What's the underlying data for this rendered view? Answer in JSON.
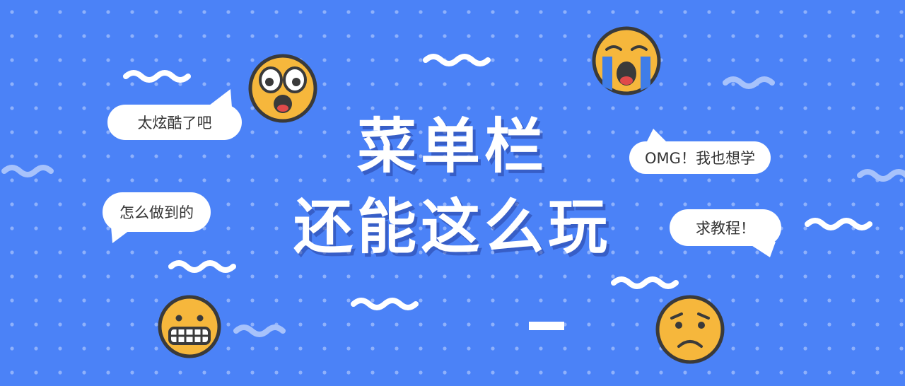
{
  "title": {
    "line1": "菜单栏",
    "line2": "还能这么玩"
  },
  "bubbles": {
    "cool": "太炫酷了吧",
    "how": "怎么做到的",
    "omg": "OMG！我也想学",
    "tutorial": "求教程！"
  },
  "emojis": [
    "surprised-face",
    "crying-face",
    "grimacing-face",
    "worried-face"
  ],
  "colors": {
    "background": "#4b82f7",
    "dots": "#8fb1fb",
    "emoji_fill": "#f6b73c",
    "outline": "#3a3a3a",
    "bubble": "#ffffff",
    "text": "#ffffff"
  }
}
